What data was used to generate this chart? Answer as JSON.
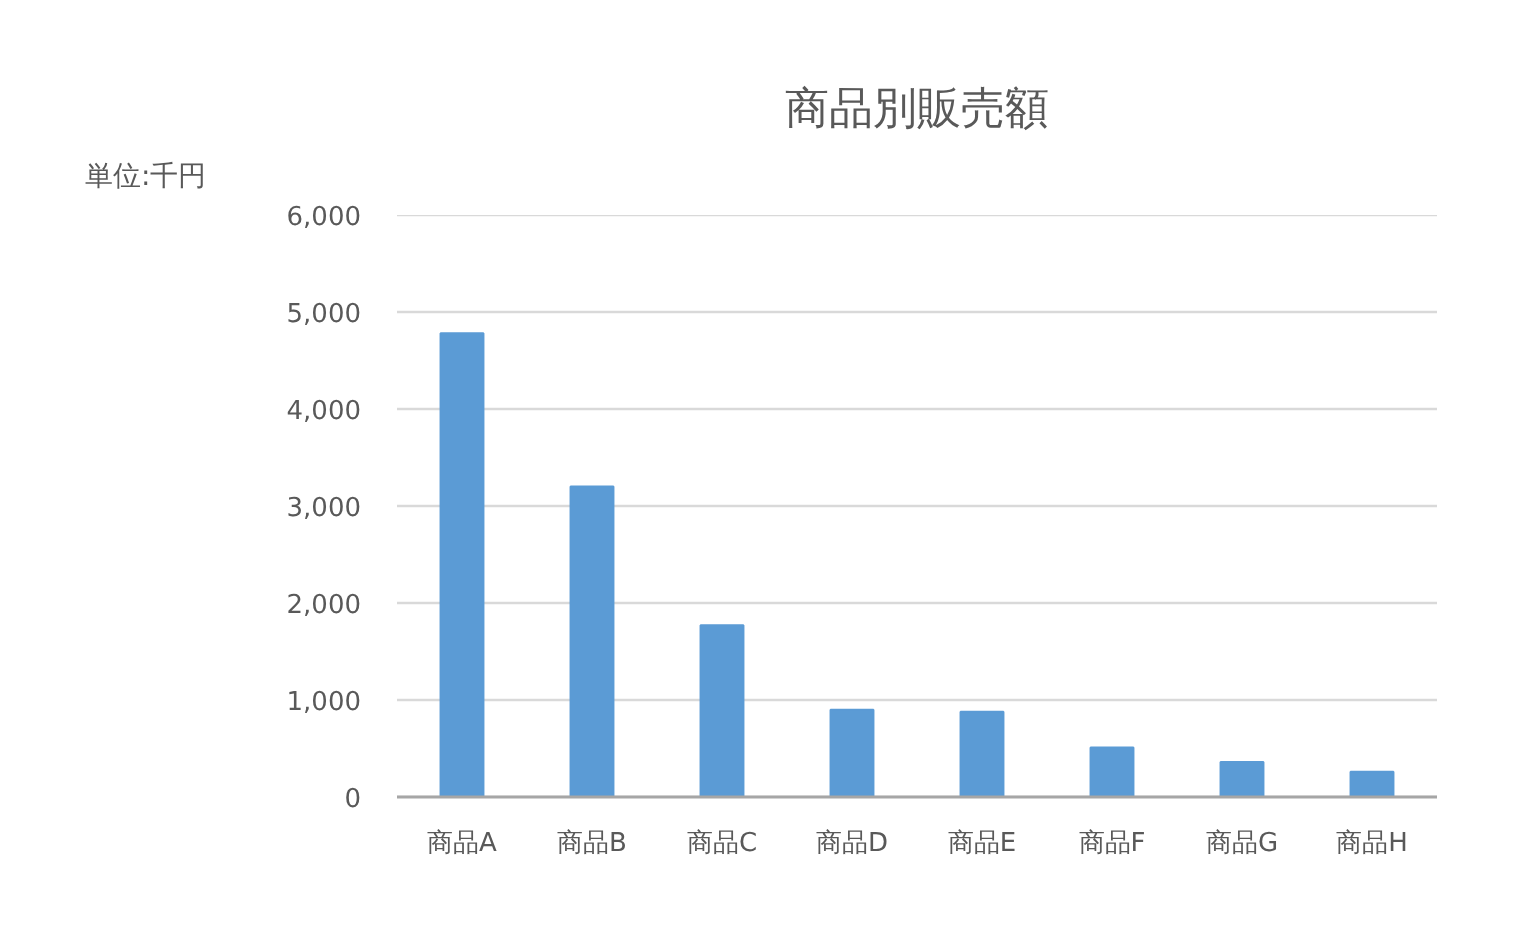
{
  "chart_data": {
    "type": "bar",
    "title": "商品別販売額",
    "annotations": [
      "単位:千円"
    ],
    "categories": [
      "商品A",
      "商品B",
      "商品C",
      "商品D",
      "商品E",
      "商品F",
      "商品G",
      "商品H"
    ],
    "values": [
      4780,
      3200,
      1770,
      900,
      880,
      510,
      360,
      260
    ],
    "color": "#5b9bd5",
    "ylim": [
      0,
      6000
    ],
    "yticks": [
      0,
      {
        "value": 1000,
        "label": "1,000"
      },
      {
        "value": 2000,
        "label": "2,000"
      },
      {
        "value": 3000,
        "label": "3,000"
      },
      {
        "value": 4000,
        "label": "4,000"
      },
      {
        "value": 5000,
        "label": "5,000"
      },
      {
        "value": 6000,
        "label": "6,000"
      }
    ],
    "grid": "y"
  }
}
